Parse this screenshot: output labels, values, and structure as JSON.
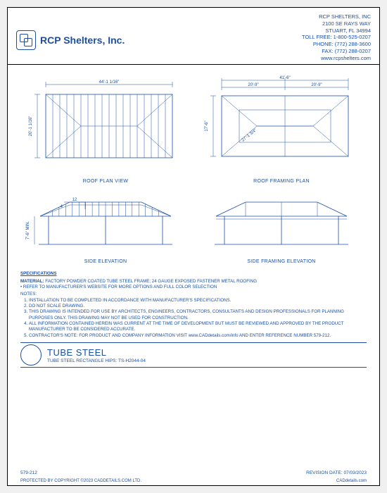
{
  "company": {
    "name": "RCP Shelters, Inc.",
    "contact_name": "RCP SHELTERS, INC",
    "addr1": "2100 SE RAYS WAY",
    "addr2": "STUART, FL 34994",
    "tollfree": "TOLL FREE: 1-800-525-0207",
    "phone": "PHONE: (772) 288-3600",
    "fax": "FAX: (772) 288-0207",
    "web": "www.rcpshelters.com"
  },
  "views": {
    "roof_plan": {
      "title": "ROOF PLAN VIEW",
      "width_dim": "44'-1 1/16\"",
      "height_dim": "20'-1 1/16\"",
      "panel_count": 18
    },
    "roof_framing": {
      "title": "ROOF FRAMING PLAN",
      "width_dim": "41'-6\"",
      "half_dim_l": "20'-9\"",
      "half_dim_r": "20'-9\"",
      "height_dim": "17'-6\"",
      "diag_dim": "27'-1 3/4\""
    },
    "side_elev": {
      "title": "SIDE ELEVATION",
      "height_dim": "7'-6\" MIN.",
      "pitch_rise": "4",
      "pitch_run": "12"
    },
    "side_framing": {
      "title": "SIDE FRAMING ELEVATION"
    }
  },
  "specs": {
    "heading": "SPECIFICATIONS",
    "material_label": "MATERIAL:",
    "material_text": " FACTORY POWDER COATED TUBE STEEL FRAME; 24 GAUGE EXPOSED FASTENER METAL ROOFING",
    "material_sub": "• REFER TO MANUFACTURER'S WEBSITE FOR MORE OPTIONS AND FULL COLOR SELECTION",
    "notes_label": "NOTES:",
    "notes": [
      "INSTALLATION TO BE COMPLETED IN ACCORDANCE WITH MANUFACTURER'S SPECIFICATIONS.",
      "DO NOT SCALE DRAWING.",
      "THIS DRAWING IS INTENDED FOR USE BY ARCHITECTS, ENGINEERS, CONTRACTORS, CONSULTANTS AND DESIGN PROFESSIONALS FOR PLANNING PURPOSES ONLY.  THIS DRAWING MAY NOT BE USED FOR CONSTRUCTION.",
      "ALL INFORMATION CONTAINED HEREIN WAS CURRENT AT THE TIME OF DEVELOPMENT BUT MUST BE REVIEWED AND APPROVED BY THE PRODUCT MANUFACTURER TO BE CONSIDERED ACCURATE.",
      "CONTRACTOR'S NOTE: FOR PRODUCT AND COMPANY INFORMATION VISIT www.CADdetails.com/info AND ENTER REFERENCE NUMBER  579-212."
    ]
  },
  "title_block": {
    "main": "TUBE STEEL",
    "sub": "TUBE STEEL RECTANGLE HIPS: TS-H2044-04"
  },
  "footer": {
    "ref": "579-212",
    "revision": "REVISION DATE: 07/03/2023",
    "copyright": "PROTECTED BY COPYRIGHT ©2023 CADDETAILS.COM LTD.",
    "site": "CADdetails.com"
  },
  "colors": {
    "primary": "#1a4fa3"
  }
}
